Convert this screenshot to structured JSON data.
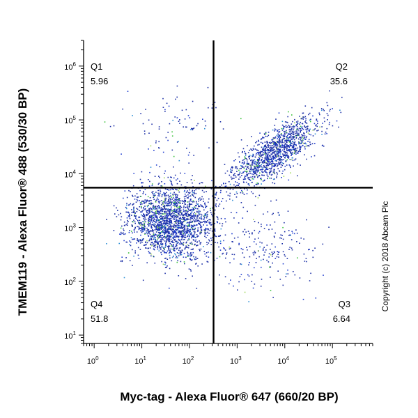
{
  "chart_data": {
    "type": "scatter",
    "xlabel": "Myc-tag - Alexa Fluor® 647 (660/20 BP)",
    "ylabel": "TMEM119 - Alexa Fluor® 488 (530/30 BP)",
    "x_scale": "log",
    "y_scale": "log",
    "xlim": [
      0.6,
      700000
    ],
    "ylim": [
      7,
      3000000
    ],
    "x_ticks": [
      {
        "base": "10",
        "exp": "0",
        "value": 1
      },
      {
        "base": "10",
        "exp": "1",
        "value": 10
      },
      {
        "base": "10",
        "exp": "2",
        "value": 100
      },
      {
        "base": "10",
        "exp": "3",
        "value": 1000
      },
      {
        "base": "10",
        "exp": "4",
        "value": 10000
      },
      {
        "base": "10",
        "exp": "5",
        "value": 100000
      }
    ],
    "y_ticks": [
      {
        "base": "10",
        "exp": "1",
        "value": 10
      },
      {
        "base": "10",
        "exp": "2",
        "value": 100
      },
      {
        "base": "10",
        "exp": "3",
        "value": 1000
      },
      {
        "base": "10",
        "exp": "4",
        "value": 10000
      },
      {
        "base": "10",
        "exp": "5",
        "value": 100000
      },
      {
        "base": "10",
        "exp": "6",
        "value": 1000000
      }
    ],
    "gates": {
      "x": 320,
      "y": 5500
    },
    "quadrants": [
      {
        "id": "Q1",
        "percent": "5.96"
      },
      {
        "id": "Q2",
        "percent": "35.6"
      },
      {
        "id": "Q3",
        "percent": "6.64"
      },
      {
        "id": "Q4",
        "percent": "51.8"
      }
    ],
    "populations": [
      {
        "x_center": 40,
        "y_center": 1300,
        "x_spread": 0.45,
        "y_spread": 0.35,
        "count": 2100
      },
      {
        "x_center": 6000,
        "y_center": 25000,
        "x_spread": 0.45,
        "y_spread": 0.35,
        "count": 1300
      },
      {
        "x_center": 50,
        "y_center": 80000,
        "x_spread": 0.6,
        "y_spread": 0.3,
        "count": 90
      },
      {
        "x_center": 4000,
        "y_center": 400,
        "x_spread": 0.55,
        "y_spread": 0.4,
        "count": 220
      }
    ],
    "point_colors": [
      "#1c2fa6",
      "#1e3cd0",
      "#2d8fd6",
      "#3cc23c",
      "#9fd85a"
    ],
    "grid": false,
    "copyright": "Copyright (c) 2018 Abcam Plc"
  }
}
